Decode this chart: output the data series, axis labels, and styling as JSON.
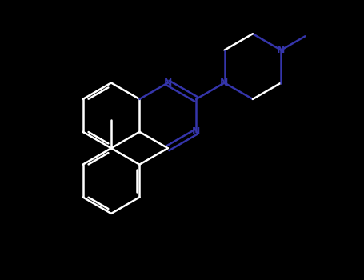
{
  "bg_color": "#000000",
  "bond_color": "#ffffff",
  "nitrogen_color": "#3535aa",
  "lw": 1.8,
  "doffset": 0.08,
  "figsize": [
    4.55,
    3.5
  ],
  "dpi": 100,
  "xlim": [
    -4.5,
    5.5
  ],
  "ylim": [
    -5.0,
    3.5
  ]
}
